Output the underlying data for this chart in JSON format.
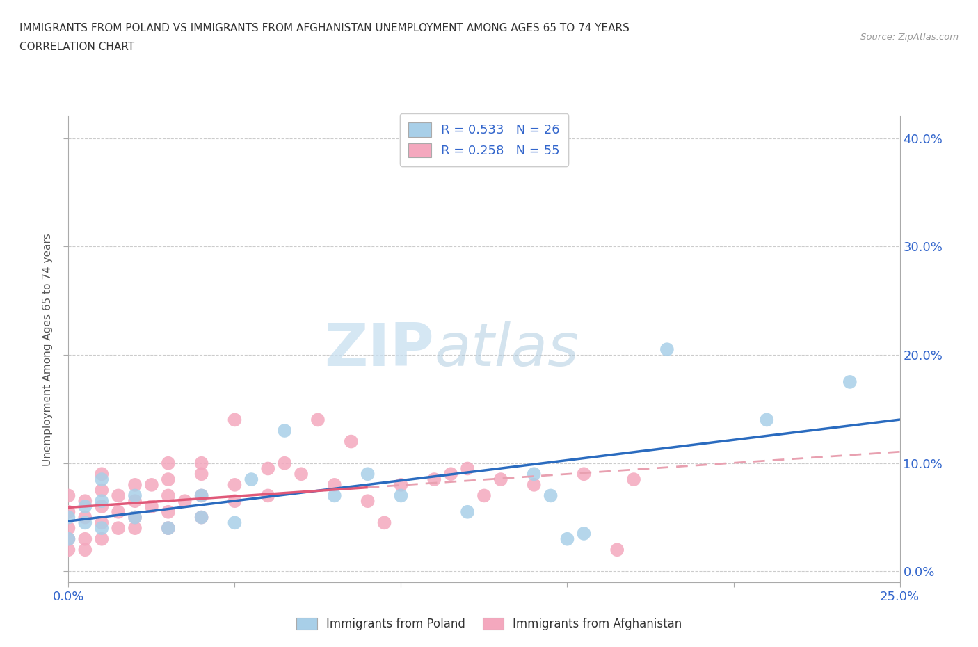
{
  "title_line1": "IMMIGRANTS FROM POLAND VS IMMIGRANTS FROM AFGHANISTAN UNEMPLOYMENT AMONG AGES 65 TO 74 YEARS",
  "title_line2": "CORRELATION CHART",
  "source_text": "Source: ZipAtlas.com",
  "ylabel": "Unemployment Among Ages 65 to 74 years",
  "xlim": [
    0.0,
    0.25
  ],
  "ylim": [
    -0.01,
    0.42
  ],
  "xticks": [
    0.0,
    0.05,
    0.1,
    0.15,
    0.2,
    0.25
  ],
  "yticks": [
    0.0,
    0.1,
    0.2,
    0.3,
    0.4
  ],
  "poland_color": "#a8cfe8",
  "afghanistan_color": "#f4a8be",
  "poland_line_color": "#2a6bbf",
  "afghanistan_line_color": "#e05878",
  "afghanistan_dashed_color": "#e8a0b0",
  "R_poland": 0.533,
  "N_poland": 26,
  "R_afghanistan": 0.258,
  "N_afghanistan": 55,
  "watermark_zip": "ZIP",
  "watermark_atlas": "atlas",
  "bg_color": "#ffffff",
  "grid_color": "#cccccc",
  "poland_scatter_x": [
    0.0,
    0.0,
    0.005,
    0.005,
    0.01,
    0.01,
    0.01,
    0.02,
    0.02,
    0.03,
    0.04,
    0.04,
    0.05,
    0.055,
    0.065,
    0.08,
    0.09,
    0.1,
    0.12,
    0.14,
    0.145,
    0.15,
    0.155,
    0.18,
    0.21,
    0.235
  ],
  "poland_scatter_y": [
    0.03,
    0.05,
    0.045,
    0.06,
    0.04,
    0.065,
    0.085,
    0.05,
    0.07,
    0.04,
    0.05,
    0.07,
    0.045,
    0.085,
    0.13,
    0.07,
    0.09,
    0.07,
    0.055,
    0.09,
    0.07,
    0.03,
    0.035,
    0.205,
    0.14,
    0.175
  ],
  "afghanistan_scatter_x": [
    0.0,
    0.0,
    0.0,
    0.0,
    0.0,
    0.005,
    0.005,
    0.005,
    0.005,
    0.01,
    0.01,
    0.01,
    0.01,
    0.01,
    0.015,
    0.015,
    0.015,
    0.02,
    0.02,
    0.02,
    0.02,
    0.025,
    0.025,
    0.03,
    0.03,
    0.03,
    0.03,
    0.03,
    0.035,
    0.04,
    0.04,
    0.04,
    0.04,
    0.05,
    0.05,
    0.05,
    0.06,
    0.06,
    0.065,
    0.07,
    0.075,
    0.08,
    0.085,
    0.09,
    0.095,
    0.1,
    0.11,
    0.115,
    0.12,
    0.125,
    0.13,
    0.14,
    0.155,
    0.165,
    0.17
  ],
  "afghanistan_scatter_y": [
    0.02,
    0.03,
    0.04,
    0.055,
    0.07,
    0.02,
    0.03,
    0.05,
    0.065,
    0.03,
    0.045,
    0.06,
    0.075,
    0.09,
    0.04,
    0.055,
    0.07,
    0.04,
    0.05,
    0.065,
    0.08,
    0.06,
    0.08,
    0.04,
    0.055,
    0.07,
    0.085,
    0.1,
    0.065,
    0.05,
    0.07,
    0.09,
    0.1,
    0.065,
    0.08,
    0.14,
    0.07,
    0.095,
    0.1,
    0.09,
    0.14,
    0.08,
    0.12,
    0.065,
    0.045,
    0.08,
    0.085,
    0.09,
    0.095,
    0.07,
    0.085,
    0.08,
    0.09,
    0.02,
    0.085
  ]
}
